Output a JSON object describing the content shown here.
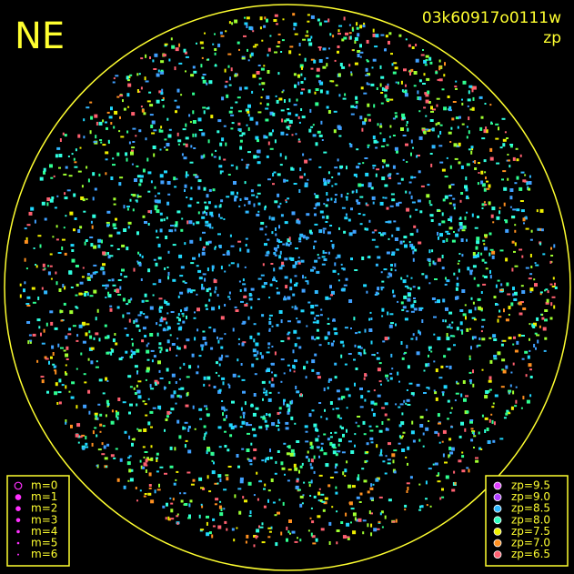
{
  "corner_label": "NE",
  "image_id": "03k60917o0111w",
  "subtitle": "zp",
  "magnitude_legend": [
    "m=0",
    "m=1",
    "m=2",
    "m=3",
    "m=4",
    "m=5",
    "m=6"
  ],
  "zp_legend": [
    {
      "label": "zp=9.5",
      "color": "#e040ff"
    },
    {
      "label": "zp=9.0",
      "color": "#b040ff"
    },
    {
      "label": "zp=8.5",
      "color": "#30b8ff"
    },
    {
      "label": "zp=8.0",
      "color": "#30ffc0"
    },
    {
      "label": "zp=7.5",
      "color": "#f0f000"
    },
    {
      "label": "zp=7.0",
      "color": "#ff9020"
    },
    {
      "label": "zp=6.5",
      "color": "#ff6070"
    }
  ]
}
